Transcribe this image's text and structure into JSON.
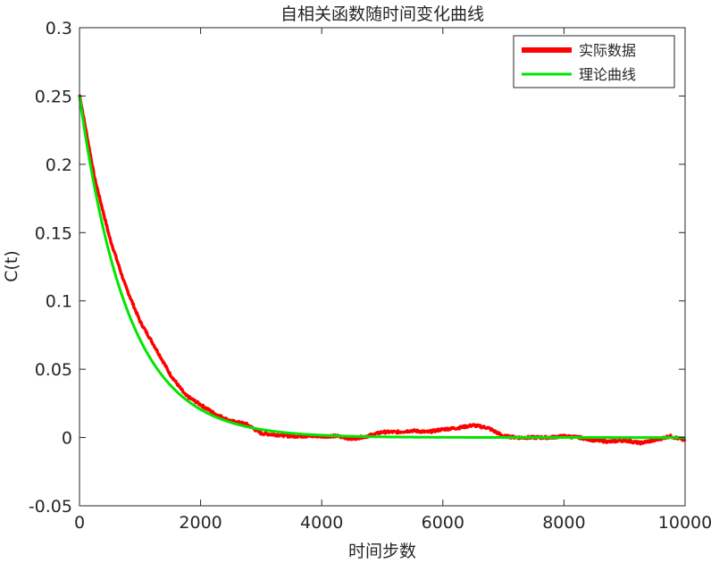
{
  "chart_data": {
    "type": "line",
    "title": "自相关函数随时间变化曲线",
    "xlabel": "时间步数",
    "ylabel": "C(t)",
    "xlim": [
      0,
      10000
    ],
    "ylim": [
      -0.05,
      0.3
    ],
    "xticks": [
      0,
      2000,
      4000,
      6000,
      8000,
      10000
    ],
    "yticks": [
      -0.05,
      0,
      0.05,
      0.1,
      0.15,
      0.2,
      0.25,
      0.3
    ],
    "xtick_labels": [
      "0",
      "2000",
      "4000",
      "6000",
      "8000",
      "10000"
    ],
    "ytick_labels": [
      "-0.05",
      "0",
      "0.05",
      "0.1",
      "0.15",
      "0.2",
      "0.25",
      "0.3"
    ],
    "grid": false,
    "legend_position": "top-right",
    "series": [
      {
        "name": "实际数据",
        "color": "#ff0000",
        "style": "thick-noisy",
        "x": [
          0,
          250,
          500,
          750,
          1000,
          1250,
          1500,
          1750,
          2000,
          2250,
          2500,
          2750,
          3000,
          3250,
          3500,
          3750,
          4000,
          4250,
          4500,
          4750,
          5000,
          5250,
          5500,
          5750,
          6000,
          6250,
          6500,
          6750,
          7000,
          7250,
          7500,
          7750,
          8000,
          8250,
          8500,
          8750,
          9000,
          9250,
          9500,
          9750,
          10000
        ],
        "y": [
          0.251,
          0.19,
          0.146,
          0.112,
          0.085,
          0.066,
          0.046,
          0.031,
          0.024,
          0.017,
          0.012,
          0.01,
          0.003,
          0.002,
          0.001,
          0.001,
          0.001,
          0.001,
          -0.001,
          0.001,
          0.004,
          0.004,
          0.005,
          0.004,
          0.006,
          0.007,
          0.009,
          0.007,
          0.001,
          0.0,
          0.0,
          0.0,
          0.001,
          0.0,
          -0.002,
          -0.003,
          -0.002,
          -0.004,
          -0.002,
          0.001,
          -0.002
        ]
      },
      {
        "name": "理论曲线",
        "color": "#00e600",
        "style": "solid",
        "function": "0.25*exp(-x/800)",
        "x": [
          0,
          500,
          1000,
          1500,
          2000,
          2500,
          3000,
          3500,
          4000,
          5000,
          6000,
          7000,
          8000,
          9000,
          10000
        ],
        "y": [
          0.25,
          0.1338,
          0.0716,
          0.0383,
          0.0205,
          0.011,
          0.0059,
          0.0031,
          0.0017,
          0.0005,
          0.0001,
          0.0,
          0.0,
          0.0,
          0.0
        ]
      }
    ]
  }
}
